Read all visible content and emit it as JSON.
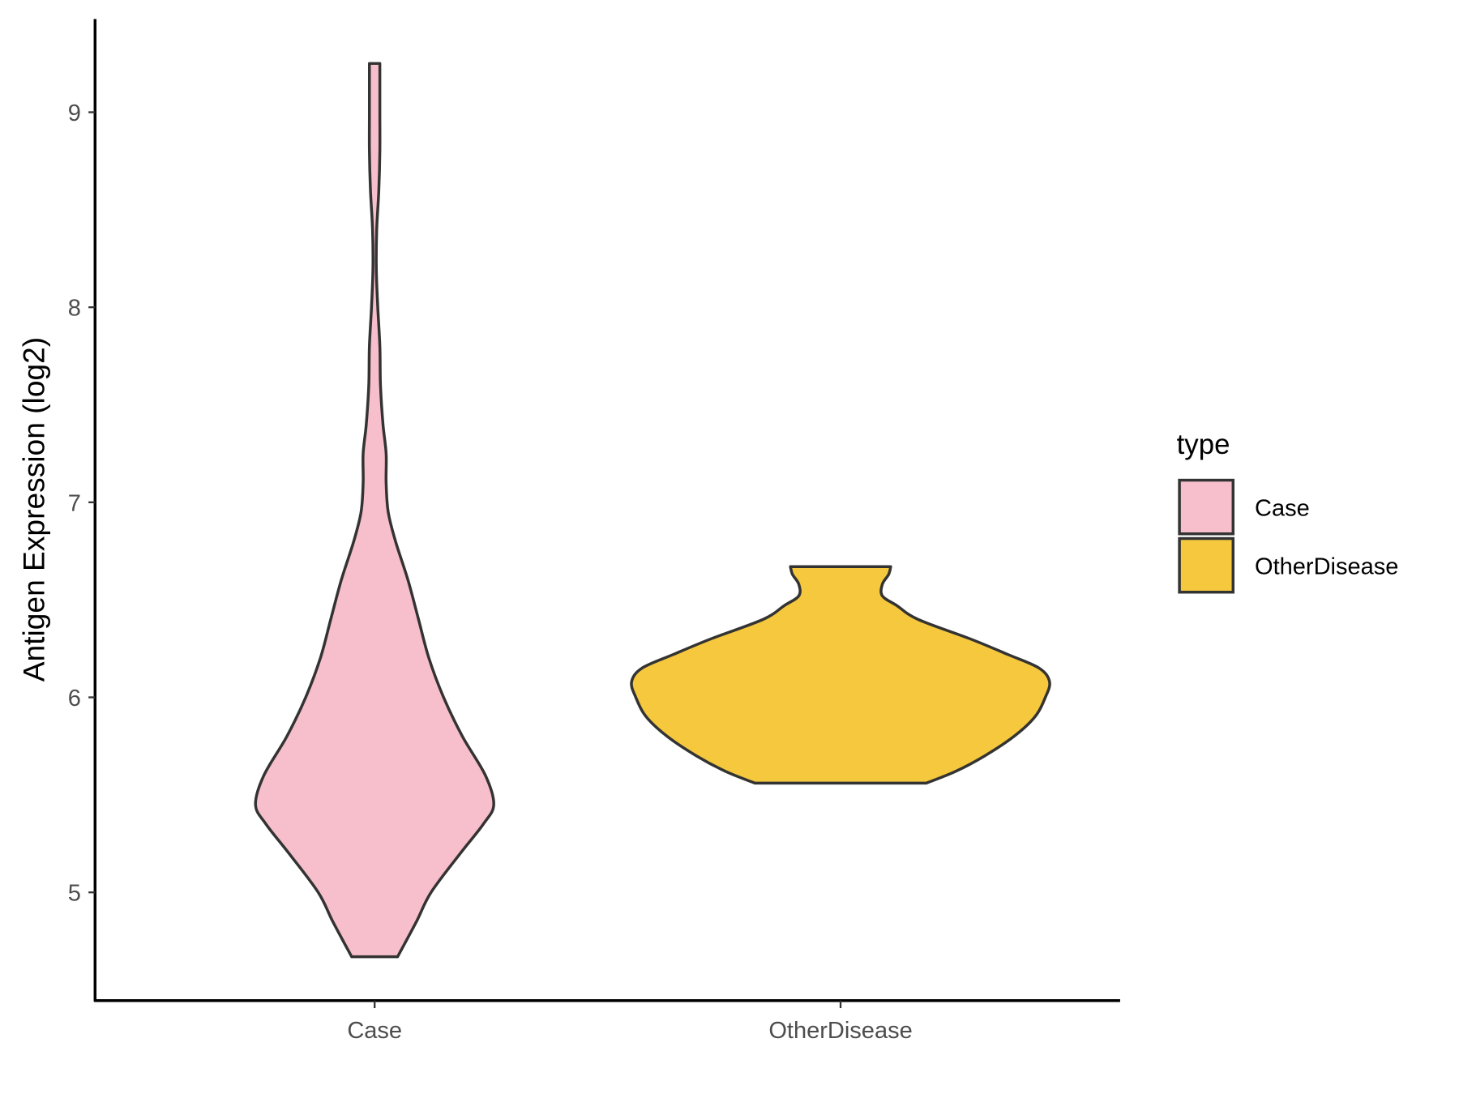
{
  "chart_data": {
    "type": "violin",
    "title": "",
    "xlabel": "",
    "ylabel": "Antigen Expression (log2)",
    "ylim": [
      4.45,
      9.5
    ],
    "yticks": [
      5,
      6,
      7,
      8,
      9
    ],
    "categories": [
      "Case",
      "OtherDisease"
    ],
    "legend": {
      "title": "type",
      "position": "right",
      "entries": [
        "Case",
        "OtherDisease"
      ]
    },
    "series": [
      {
        "name": "Case",
        "color": "#F7BFCB",
        "min": 4.67,
        "max": 9.25,
        "density_profile": [
          [
            4.67,
            0.11
          ],
          [
            4.85,
            0.2
          ],
          [
            5.0,
            0.27
          ],
          [
            5.2,
            0.41
          ],
          [
            5.35,
            0.52
          ],
          [
            5.45,
            0.57
          ],
          [
            5.6,
            0.53
          ],
          [
            5.8,
            0.42
          ],
          [
            6.0,
            0.33
          ],
          [
            6.2,
            0.26
          ],
          [
            6.4,
            0.21
          ],
          [
            6.6,
            0.16
          ],
          [
            6.8,
            0.1
          ],
          [
            6.95,
            0.065
          ],
          [
            7.1,
            0.055
          ],
          [
            7.25,
            0.055
          ],
          [
            7.4,
            0.04
          ],
          [
            7.6,
            0.028
          ],
          [
            7.8,
            0.025
          ],
          [
            8.0,
            0.015
          ],
          [
            8.2,
            0.008
          ],
          [
            8.4,
            0.01
          ],
          [
            8.6,
            0.02
          ],
          [
            8.8,
            0.025
          ],
          [
            9.0,
            0.025
          ],
          [
            9.25,
            0.025
          ]
        ]
      },
      {
        "name": "OtherDisease",
        "color": "#F5C83E",
        "min": 5.56,
        "max": 6.67,
        "density_profile": [
          [
            5.56,
            0.41
          ],
          [
            5.62,
            0.55
          ],
          [
            5.7,
            0.69
          ],
          [
            5.8,
            0.83
          ],
          [
            5.9,
            0.93
          ],
          [
            6.0,
            0.98
          ],
          [
            6.08,
            1.0
          ],
          [
            6.15,
            0.95
          ],
          [
            6.22,
            0.8
          ],
          [
            6.3,
            0.62
          ],
          [
            6.4,
            0.37
          ],
          [
            6.47,
            0.27
          ],
          [
            6.52,
            0.2
          ],
          [
            6.58,
            0.2
          ],
          [
            6.63,
            0.23
          ],
          [
            6.67,
            0.24
          ]
        ]
      }
    ]
  }
}
